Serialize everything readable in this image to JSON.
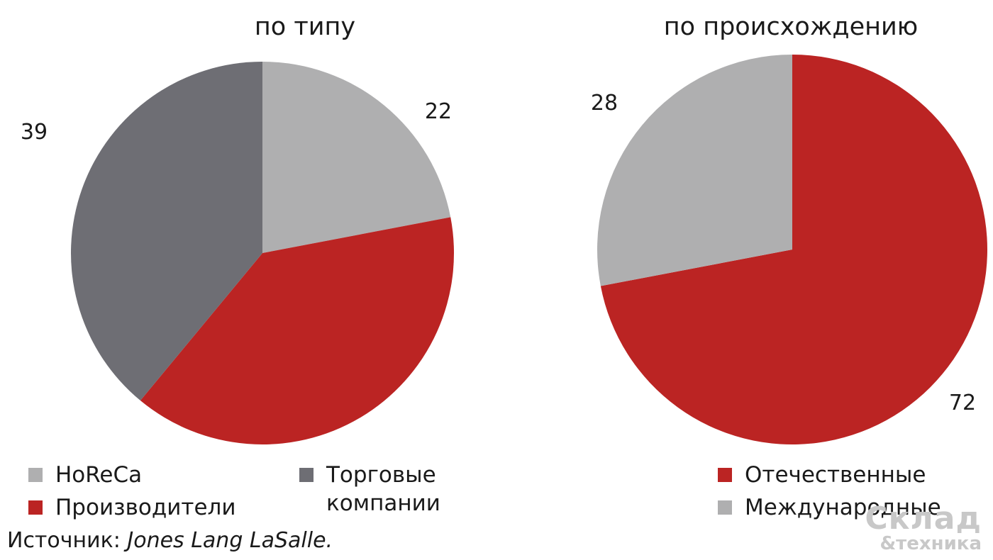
{
  "colors": {
    "light_gray": "#afafb0",
    "dark_gray": "#6e6e74",
    "red": "#bb2423"
  },
  "chart_data": [
    {
      "type": "pie",
      "title": "по типу",
      "slices": [
        {
          "name": "HoReCa",
          "value": 22,
          "color": "#afafb0"
        },
        {
          "name": "Производители",
          "value": 39,
          "color": "#bb2423"
        },
        {
          "name": "Торговые\nкомпании",
          "value": 39,
          "color": "#6e6e74"
        }
      ],
      "data_labels": [
        {
          "slice": 0,
          "text": "22"
        },
        {
          "slice": 2,
          "text": "39"
        }
      ],
      "legend": [
        {
          "label": "HoReCa",
          "color": "#afafb0"
        },
        {
          "label": "Производители",
          "color": "#bb2423"
        },
        {
          "label": "Торговые\nкомпании",
          "color": "#6e6e74"
        }
      ]
    },
    {
      "type": "pie",
      "title": "по происхождению",
      "slices": [
        {
          "name": "Отечественные",
          "value": 72,
          "color": "#bb2423"
        },
        {
          "name": "Международные",
          "value": 28,
          "color": "#afafb0"
        }
      ],
      "data_labels": [
        {
          "slice": 0,
          "text": "72"
        },
        {
          "slice": 1,
          "text": "28"
        }
      ],
      "legend": [
        {
          "label": "Отечественные",
          "color": "#bb2423"
        },
        {
          "label": "Международные",
          "color": "#afafb0"
        }
      ]
    }
  ],
  "source": {
    "prefix": "Источник: ",
    "name": "Jones Lang LaSalle."
  },
  "logo": {
    "line1": "Склад",
    "line2": "&техника"
  }
}
